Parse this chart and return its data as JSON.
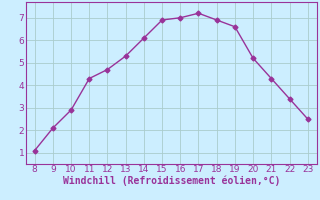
{
  "x": [
    8,
    9,
    10,
    11,
    12,
    13,
    14,
    15,
    16,
    17,
    18,
    19,
    20,
    21,
    22,
    23
  ],
  "y": [
    1.1,
    2.1,
    2.9,
    4.3,
    4.7,
    5.3,
    6.1,
    6.9,
    7.0,
    7.2,
    6.9,
    6.6,
    5.2,
    4.3,
    3.4,
    2.5
  ],
  "line_color": "#993399",
  "marker": "D",
  "marker_size": 2.5,
  "xlabel": "Windchill (Refroidissement éolien,°C)",
  "xlim": [
    7.5,
    23.5
  ],
  "ylim": [
    0.5,
    7.7
  ],
  "xticks": [
    8,
    9,
    10,
    11,
    12,
    13,
    14,
    15,
    16,
    17,
    18,
    19,
    20,
    21,
    22,
    23
  ],
  "yticks": [
    1,
    2,
    3,
    4,
    5,
    6,
    7
  ],
  "bg_color": "#cceeff",
  "grid_color": "#aacccc",
  "axis_color": "#993399",
  "tick_color": "#993399",
  "label_color": "#993399",
  "xlabel_fontsize": 7.0,
  "tick_fontsize": 6.5
}
